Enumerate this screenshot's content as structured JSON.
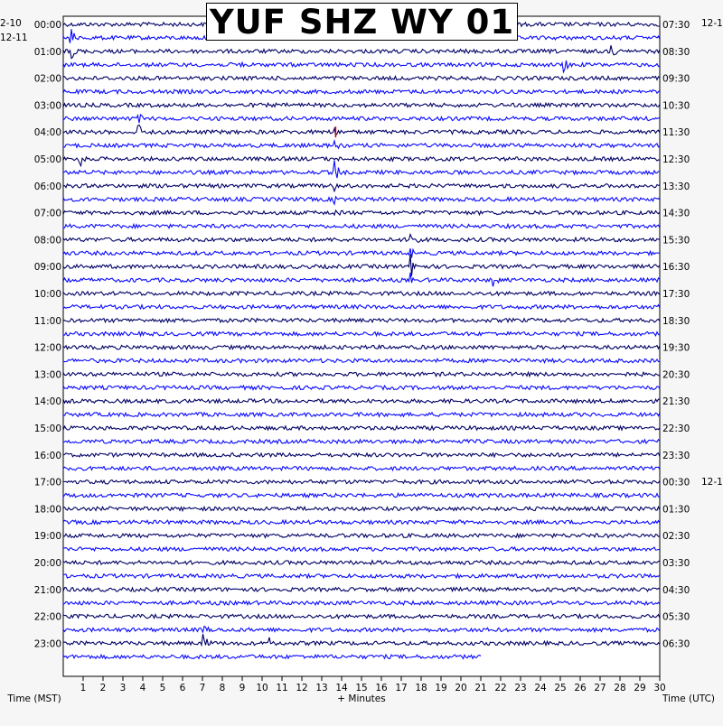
{
  "chart_data": {
    "type": "seismogram",
    "title": "YUF SHZ WY 01",
    "left_date_labels": [
      "2-10",
      "12-11"
    ],
    "right_date_labels": [
      "12-1",
      "12-1"
    ],
    "left_hours": [
      "00:00",
      "01:00",
      "02:00",
      "03:00",
      "04:00",
      "05:00",
      "06:00",
      "07:00",
      "08:00",
      "09:00",
      "10:00",
      "11:00",
      "12:00",
      "13:00",
      "14:00",
      "15:00",
      "16:00",
      "17:00",
      "18:00",
      "19:00",
      "20:00",
      "21:00",
      "22:00",
      "23:00"
    ],
    "right_hours": [
      "07:30",
      "08:30",
      "09:30",
      "10:30",
      "11:30",
      "12:30",
      "13:30",
      "14:30",
      "15:30",
      "16:30",
      "17:30",
      "18:30",
      "19:30",
      "20:30",
      "21:30",
      "22:30",
      "23:30",
      "00:30",
      "01:30",
      "02:30",
      "03:30",
      "04:30",
      "05:30",
      "06:30"
    ],
    "x_ticks": [
      "1",
      "2",
      "3",
      "4",
      "5",
      "6",
      "7",
      "8",
      "9",
      "10",
      "11",
      "12",
      "13",
      "14",
      "15",
      "16",
      "17",
      "18",
      "19",
      "20",
      "21",
      "22",
      "23",
      "24",
      "25",
      "26",
      "27",
      "28",
      "29",
      "30"
    ],
    "xlim": [
      0,
      30
    ],
    "xlabel": "+ Minutes",
    "left_axis_label": "Time (MST)",
    "right_axis_label": "Time (UTC)",
    "trace_count": 48,
    "last_trace_end_minute": 21,
    "trace_colors": [
      "#000066",
      "#0a0aff"
    ],
    "event_color": "#cc0000",
    "events": [
      {
        "trace": 1,
        "minute": 0.4,
        "amp": 1.8
      },
      {
        "trace": 2,
        "minute": 0.4,
        "amp": 1.6
      },
      {
        "trace": 2,
        "minute": 27.6,
        "amp": 1.5
      },
      {
        "trace": 3,
        "minute": 25.2,
        "amp": 1.8
      },
      {
        "trace": 3,
        "minute": 9.0,
        "amp": 0.8
      },
      {
        "trace": 7,
        "minute": 3.8,
        "amp": 1.5
      },
      {
        "trace": 8,
        "minute": 3.8,
        "amp": 2.0
      },
      {
        "trace": 10,
        "minute": 0.9,
        "amp": 1.3
      },
      {
        "trace": 8,
        "minute": 13.7,
        "amp": 1.2,
        "red": true
      },
      {
        "trace": 9,
        "minute": 13.7,
        "amp": 1.0
      },
      {
        "trace": 11,
        "minute": 13.7,
        "amp": 2.2
      },
      {
        "trace": 12,
        "minute": 13.7,
        "amp": 1.2
      },
      {
        "trace": 13,
        "minute": 13.7,
        "amp": 1.0
      },
      {
        "trace": 14,
        "minute": 13.7,
        "amp": 0.8
      },
      {
        "trace": 16,
        "minute": 17.5,
        "amp": 2.0
      },
      {
        "trace": 17,
        "minute": 17.5,
        "amp": 2.2
      },
      {
        "trace": 18,
        "minute": 17.5,
        "amp": 2.8
      },
      {
        "trace": 19,
        "minute": 17.5,
        "amp": 1.8
      },
      {
        "trace": 19,
        "minute": 21.6,
        "amp": 1.6
      },
      {
        "trace": 46,
        "minute": 7.1,
        "amp": 2.4
      },
      {
        "trace": 45,
        "minute": 7.1,
        "amp": 1.2
      },
      {
        "trace": 46,
        "minute": 10.4,
        "amp": 0.9
      }
    ]
  }
}
